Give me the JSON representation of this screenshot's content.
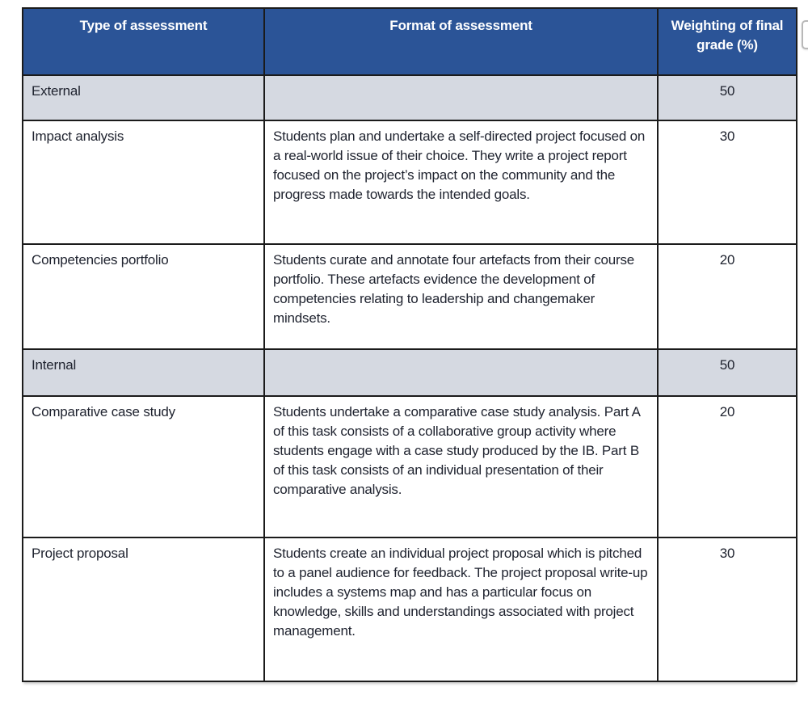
{
  "table": {
    "columns": [
      {
        "label": "Type of assessment"
      },
      {
        "label": "Format of assessment"
      },
      {
        "label": "Weighting of final grade (%)"
      }
    ],
    "rows": [
      {
        "type": "External",
        "format": "",
        "weight": "50"
      },
      {
        "type": "Impact analysis",
        "format": "Students plan and undertake a self-directed project focused on a real-world issue of their choice. They write a project report focused on the project’s impact on the community and the progress made towards the intended goals.",
        "weight": "30"
      },
      {
        "type": "Competencies portfolio",
        "format": "Students curate and annotate four artefacts from their course portfolio. These artefacts evidence the development of competencies relating to leadership and changemaker mindsets.",
        "weight": "20"
      },
      {
        "type": "Internal",
        "format": "",
        "weight": "50"
      },
      {
        "type": "Comparative case study",
        "format": "Students undertake a comparative case study analysis. Part A of this task consists of a collaborative group activity where students engage with a case study produced by the IB. Part B of this task consists of an individual presentation of their comparative analysis.",
        "weight": "20"
      },
      {
        "type": "Project proposal",
        "format": "Students create an individual project proposal which is pitched to a panel audience for feedback. The project proposal write-up includes a systems map and has a particular focus on knowledge, skills and understandings associated with project management.",
        "weight": "30"
      }
    ],
    "colors": {
      "header_bg": "#2b5497",
      "header_text": "#ffffff",
      "section_row_bg": "#d5d9e1",
      "detail_row_bg": "#ffffff",
      "border": "#1b1b1b",
      "body_text": "#202430"
    }
  }
}
